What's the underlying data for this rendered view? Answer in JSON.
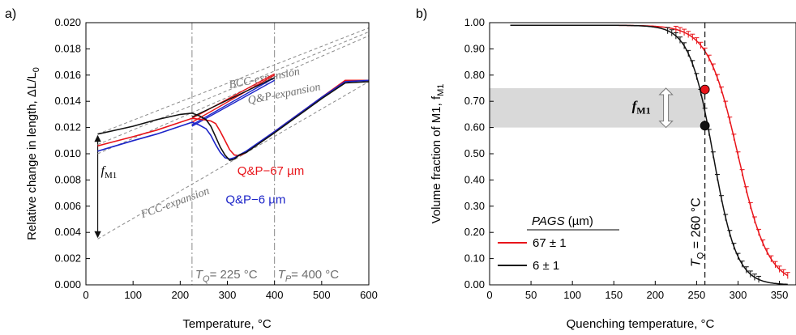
{
  "chart_data": [
    {
      "type": "line",
      "panel_label": "a)",
      "xlabel": "Temperature, °C",
      "ylabel": "Relative change in length, ΔL/L",
      "ylabel_sub": "0",
      "xlim": [
        0,
        600
      ],
      "ylim": [
        0.0,
        0.02
      ],
      "x_ticks": [
        "0",
        "100",
        "200",
        "300",
        "400",
        "500",
        "600"
      ],
      "y_ticks": [
        "0.000",
        "0.002",
        "0.004",
        "0.006",
        "0.008",
        "0.010",
        "0.012",
        "0.014",
        "0.016",
        "0.018",
        "0.020"
      ],
      "grid": false,
      "colors": {
        "red": "#e8141a",
        "blue": "#1c24c8",
        "black": "#111111",
        "grey": "#808080"
      },
      "series": [
        {
          "name": "Q&P−67 µm",
          "color": "red",
          "x": [
            25,
            100,
            150,
            200,
            225,
            250,
            265,
            275,
            285,
            295,
            305,
            315,
            325,
            335,
            350,
            400,
            450,
            500,
            550,
            600
          ],
          "y": [
            0.0106,
            0.0113,
            0.0118,
            0.0124,
            0.0127,
            0.0126,
            0.0125,
            0.0123,
            0.0117,
            0.011,
            0.0103,
            0.0099,
            0.00985,
            0.01,
            0.0104,
            0.0117,
            0.013,
            0.0143,
            0.0156,
            0.0156
          ]
        },
        {
          "name": "Q&P−6 µm",
          "color": "blue",
          "x": [
            25,
            100,
            150,
            200,
            225,
            240,
            255,
            265,
            275,
            285,
            295,
            305,
            315,
            325,
            340,
            400,
            450,
            500,
            550,
            600
          ],
          "y": [
            0.0102,
            0.011,
            0.0115,
            0.0121,
            0.0124,
            0.0122,
            0.0119,
            0.0114,
            0.0107,
            0.0101,
            0.0097,
            0.0096,
            0.0097,
            0.0099,
            0.0102,
            0.0117,
            0.013,
            0.0143,
            0.0155,
            0.0156
          ]
        },
        {
          "name": "",
          "color": "black",
          "x": [
            25,
            100,
            150,
            200,
            225,
            240,
            255,
            265,
            275,
            285,
            295,
            305,
            315,
            325,
            340,
            400,
            450,
            500,
            550,
            600
          ],
          "y": [
            0.0115,
            0.0121,
            0.0126,
            0.013,
            0.0131,
            0.0129,
            0.0126,
            0.0121,
            0.0113,
            0.0105,
            0.0099,
            0.0095,
            0.0096,
            0.0099,
            0.0101,
            0.0116,
            0.0129,
            0.0142,
            0.0154,
            0.0155
          ]
        }
      ],
      "heating_lines": [
        {
          "color": "red",
          "x": [
            225,
            400
          ],
          "y": [
            0.0127,
            0.0161
          ]
        },
        {
          "color": "red",
          "x": [
            225,
            400
          ],
          "y": [
            0.0124,
            0.016
          ]
        },
        {
          "color": "blue",
          "x": [
            225,
            400
          ],
          "y": [
            0.0122,
            0.0158
          ]
        },
        {
          "color": "blue",
          "x": [
            225,
            400
          ],
          "y": [
            0.0121,
            0.0156
          ]
        },
        {
          "color": "black",
          "x": [
            225,
            400
          ],
          "y": [
            0.0128,
            0.0158
          ]
        }
      ],
      "reference_lines": [
        {
          "x": [
            25,
            600
          ],
          "y": [
            0.0115,
            0.0196
          ]
        },
        {
          "x": [
            25,
            600
          ],
          "y": [
            0.0107,
            0.0193
          ]
        },
        {
          "x": [
            25,
            600
          ],
          "y": [
            0.01,
            0.019
          ]
        },
        {
          "x": [
            25,
            600
          ],
          "y": [
            0.0035,
            0.0155
          ]
        }
      ],
      "vlines": [
        {
          "x": 225,
          "label_T": "T",
          "label_sub": "Q",
          "label_rest": "= 225 °C"
        },
        {
          "x": 400,
          "label_T": "T",
          "label_sub": "P",
          "label_rest": "= 400 °C"
        }
      ],
      "annotations": {
        "bcc": {
          "text": "BCC-expansion",
          "x": 305,
          "y": 0.015
        },
        "qp": {
          "text": "Q&P-expansion",
          "x": 345,
          "y": 0.0138
        },
        "fcc": {
          "text": "FCC-expansion",
          "x": 120,
          "y": 0.0051
        },
        "fm1_main": "f",
        "fm1_sub": "M1",
        "fm1_arrow": {
          "x": 25,
          "y_top": 0.0115,
          "y_bottom": 0.0035
        },
        "label_67": {
          "text": "Q&P−67 µm",
          "x": 392,
          "y": 0.0084
        },
        "label_6": {
          "text": "Q&P−6 µm",
          "x": 360,
          "y": 0.0062
        }
      }
    },
    {
      "type": "line",
      "panel_label": "b)",
      "xlabel": "Quenching temperature, °C",
      "ylabel": "Volume fraction of M1, f",
      "ylabel_sub": "M1",
      "xlim": [
        0,
        370
      ],
      "ylim": [
        0.0,
        1.0
      ],
      "x_ticks": [
        "0",
        "50",
        "100",
        "150",
        "200",
        "250",
        "300",
        "350"
      ],
      "y_ticks": [
        "0.00",
        "0.10",
        "0.20",
        "0.30",
        "0.40",
        "0.50",
        "0.60",
        "0.70",
        "0.80",
        "0.90",
        "1.00"
      ],
      "grid": false,
      "colors": {
        "red": "#e8141a",
        "black": "#111111",
        "band": "#d9d9d9"
      },
      "legend_title": "PAGS",
      "legend_title_unit": " (µm)",
      "legend_placement": "bottom-left",
      "series": [
        {
          "name": "67 ± 1",
          "color": "red",
          "T0": 300,
          "k": 0.055
        },
        {
          "name": "6 ± 1",
          "color": "black",
          "T0": 270,
          "k": 0.07
        }
      ],
      "curve_x_range": [
        25,
        360
      ],
      "curve_x_step": 5,
      "error_bar_half": 0.012,
      "band": {
        "y0": 0.6,
        "y1": 0.75
      },
      "vline": {
        "x": 260,
        "label_T": "T",
        "label_sub": "Q",
        "label_rest": " = 260 °C"
      },
      "markers": [
        {
          "color": "red",
          "x": 260,
          "y": 0.745
        },
        {
          "color": "black",
          "x": 260,
          "y": 0.607
        }
      ],
      "fm1_label": {
        "main": "f",
        "sub": "M1"
      },
      "fm1_arrow": {
        "x": 213,
        "y_top": 0.75,
        "y_bottom": 0.6
      }
    }
  ]
}
